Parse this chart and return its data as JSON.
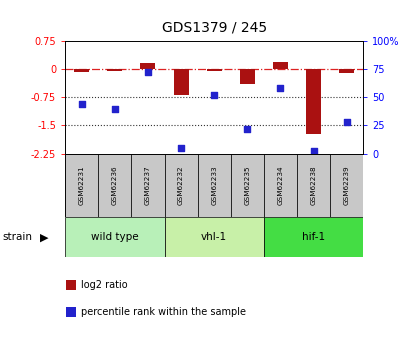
{
  "title": "GDS1379 / 245",
  "samples": [
    "GSM62231",
    "GSM62236",
    "GSM62237",
    "GSM62232",
    "GSM62233",
    "GSM62235",
    "GSM62234",
    "GSM62238",
    "GSM62239"
  ],
  "log2_ratio": [
    -0.08,
    -0.05,
    0.18,
    -0.68,
    -0.05,
    -0.38,
    0.2,
    -1.72,
    -0.09
  ],
  "percentile_rank": [
    44,
    40,
    73,
    5,
    52,
    22,
    58,
    2,
    28
  ],
  "groups": [
    {
      "label": "wild type",
      "start": 0,
      "end": 3,
      "color": "#b8f0b8"
    },
    {
      "label": "vhl-1",
      "start": 3,
      "end": 6,
      "color": "#c8f0a8"
    },
    {
      "label": "hif-1",
      "start": 6,
      "end": 9,
      "color": "#44dd44"
    }
  ],
  "ylim_left": [
    -2.25,
    0.75
  ],
  "ylim_right": [
    0,
    100
  ],
  "yticks_left": [
    -2.25,
    -1.5,
    -0.75,
    0,
    0.75
  ],
  "yticks_right": [
    0,
    25,
    50,
    75,
    100
  ],
  "bar_color": "#aa1111",
  "dot_color": "#2222cc",
  "hline_color": "#dd2222",
  "dotted_line_color": "#333333",
  "sample_box_color": "#c8c8c8",
  "legend_items": [
    {
      "label": "log2 ratio",
      "color": "#aa1111"
    },
    {
      "label": "percentile rank within the sample",
      "color": "#2222cc"
    }
  ]
}
